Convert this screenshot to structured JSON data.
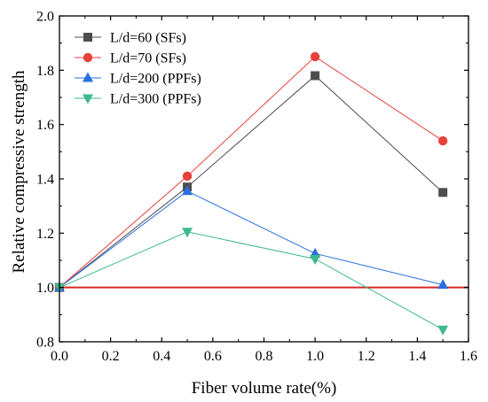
{
  "chart_data": {
    "type": "line",
    "xlabel": "Fiber volume rate(%)",
    "ylabel": "Relative compressive strength",
    "xlim": [
      0.0,
      1.6
    ],
    "ylim": [
      0.8,
      2.0
    ],
    "x_ticks": [
      "0.0",
      "0.2",
      "0.4",
      "0.6",
      "0.8",
      "1.0",
      "1.2",
      "1.4",
      "1.6"
    ],
    "y_ticks": [
      "0.8",
      "1.0",
      "1.2",
      "1.4",
      "1.6",
      "1.8",
      "2.0"
    ],
    "x": [
      0.0,
      0.5,
      1.0,
      1.5
    ],
    "legend_position": "top-left",
    "reference_line": {
      "y": 1.0,
      "color": "#d62728"
    },
    "series": [
      {
        "name": "L/d=60 (SFs)",
        "values": [
          1.0,
          1.37,
          1.78,
          1.35
        ],
        "color": "#4d4d4d",
        "marker": "square"
      },
      {
        "name": "L/d=70 (SFs)",
        "values": [
          1.0,
          1.41,
          1.85,
          1.54
        ],
        "color": "#e8413c",
        "marker": "circle"
      },
      {
        "name": "L/d=200 (PPFs)",
        "values": [
          1.0,
          1.355,
          1.125,
          1.01
        ],
        "color": "#2a6fe0",
        "marker": "triangle-up"
      },
      {
        "name": "L/d=300 (PPFs)",
        "values": [
          1.0,
          1.205,
          1.105,
          0.845
        ],
        "color": "#3fb88c",
        "marker": "triangle-down"
      }
    ]
  }
}
